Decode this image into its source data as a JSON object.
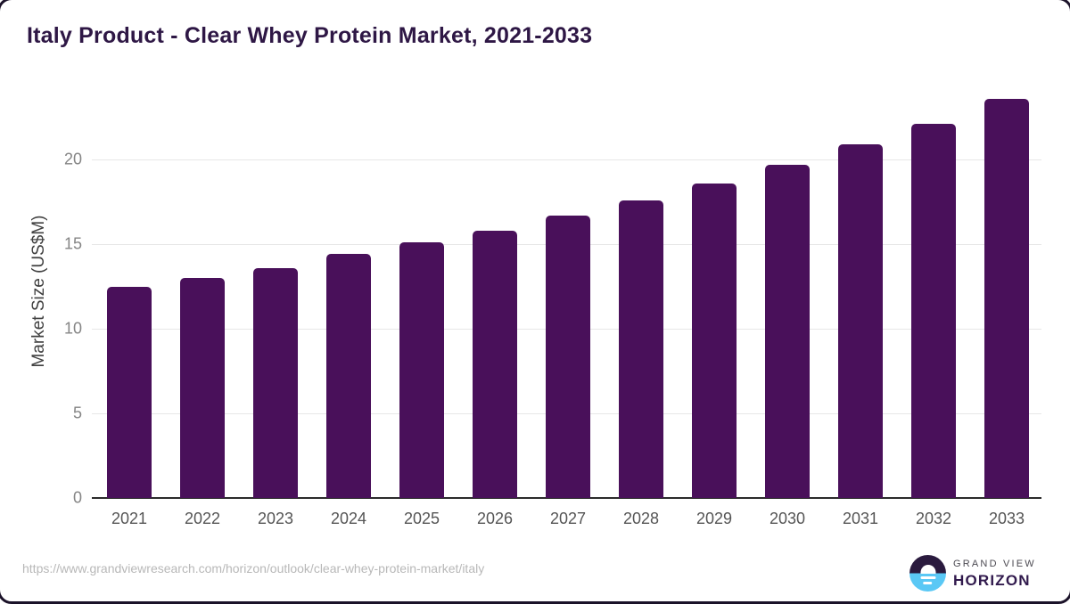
{
  "title": "Italy Product - Clear Whey Protein Market, 2021-2033",
  "chart_data": {
    "type": "bar",
    "categories": [
      "2021",
      "2022",
      "2023",
      "2024",
      "2025",
      "2026",
      "2027",
      "2028",
      "2029",
      "2030",
      "2031",
      "2032",
      "2033"
    ],
    "values": [
      12.5,
      13.0,
      13.6,
      14.4,
      15.1,
      15.8,
      16.7,
      17.6,
      18.6,
      19.7,
      20.9,
      22.1,
      23.6
    ],
    "title": "Italy Product - Clear Whey Protein Market, 2021-2033",
    "xlabel": "",
    "ylabel": "Market Size (US$M)",
    "ylim": [
      0,
      24.2
    ],
    "yticks": [
      0,
      5,
      10,
      15,
      20
    ],
    "grid": true,
    "legend": false
  },
  "colors": {
    "bar": "#49105a",
    "title": "#2e1745",
    "axis_line": "#2b2b2b",
    "gridline": "#e7e7e7",
    "tick_label": "#858585",
    "x_label": "#555555",
    "axis_title": "#404040",
    "url": "#b8b8b8",
    "logo_dark": "#2a1a3e",
    "logo_blue": "#5ac8f5",
    "logo_text": "#311a4d",
    "logo_subtext": "#4c4a52"
  },
  "footer": {
    "url": "https://www.grandviewresearch.com/horizon/outlook/clear-whey-protein-market/italy",
    "logo_line1": "GRAND VIEW",
    "logo_line2": "HORIZON"
  }
}
